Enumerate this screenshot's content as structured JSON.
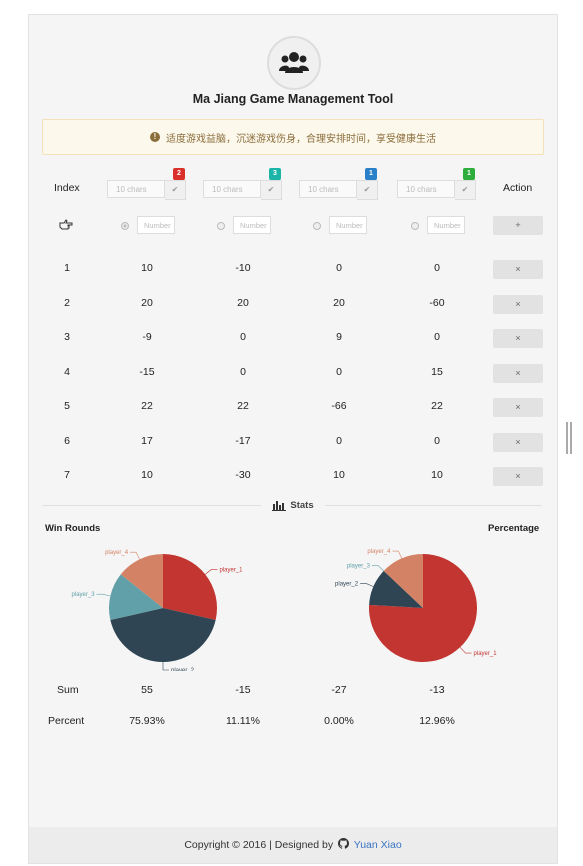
{
  "app": {
    "title": "Ma Jiang Game Management Tool",
    "alert": "适度游戏益脑，沉迷游戏伤身，合理安排时间，享受健康生活"
  },
  "table": {
    "index_header": "Index",
    "action_header": "Action",
    "add_label": "+",
    "delete_label": "×",
    "name_placeholder": "10 chars",
    "number_placeholder": "Number",
    "players": [
      {
        "badge": "2",
        "badge_color": "#d9302c"
      },
      {
        "badge": "3",
        "badge_color": "#1bb5a8"
      },
      {
        "badge": "1",
        "badge_color": "#2a7fc9"
      },
      {
        "badge": "1",
        "badge_color": "#2dae3c"
      }
    ],
    "rows": [
      {
        "index": "1",
        "scores": [
          "10",
          "-10",
          "0",
          "0"
        ]
      },
      {
        "index": "2",
        "scores": [
          "20",
          "20",
          "20",
          "-60"
        ]
      },
      {
        "index": "3",
        "scores": [
          "-9",
          "0",
          "9",
          "0"
        ]
      },
      {
        "index": "4",
        "scores": [
          "-15",
          "0",
          "0",
          "15"
        ]
      },
      {
        "index": "5",
        "scores": [
          "22",
          "22",
          "-66",
          "22"
        ]
      },
      {
        "index": "6",
        "scores": [
          "17",
          "-17",
          "0",
          "0"
        ]
      },
      {
        "index": "7",
        "scores": [
          "10",
          "-30",
          "10",
          "10"
        ]
      }
    ]
  },
  "stats": {
    "label": "Stats",
    "sum_label": "Sum",
    "sums": [
      "55",
      "-15",
      "-27",
      "-13"
    ],
    "percent_label": "Percent",
    "percents": [
      "75.93%",
      "11.11%",
      "0.00%",
      "12.96%"
    ]
  },
  "chart_data": [
    {
      "type": "pie",
      "title": "Win Rounds",
      "labels": [
        "player_1",
        "player_2",
        "player_3",
        "player_4"
      ],
      "values": [
        2,
        3,
        1,
        1
      ],
      "colors": [
        "#c23531",
        "#2f4554",
        "#61a0a8",
        "#d48265"
      ]
    },
    {
      "type": "pie",
      "title": "Percentage",
      "labels": [
        "player_1",
        "player_2",
        "player_3",
        "player_4"
      ],
      "values": [
        75.93,
        11.11,
        0.0,
        12.96
      ],
      "colors": [
        "#c23531",
        "#2f4554",
        "#61a0a8",
        "#d48265"
      ]
    }
  ],
  "footer": {
    "copyright": "Copyright © 2016 | Designed by",
    "author": "Yuan Xiao"
  },
  "icons": {
    "logo": "users-icon",
    "alert": "exclamation-circle-icon",
    "pointer": "hand-point-right-icon",
    "stats": "bar-chart-icon",
    "github": "github-icon"
  }
}
